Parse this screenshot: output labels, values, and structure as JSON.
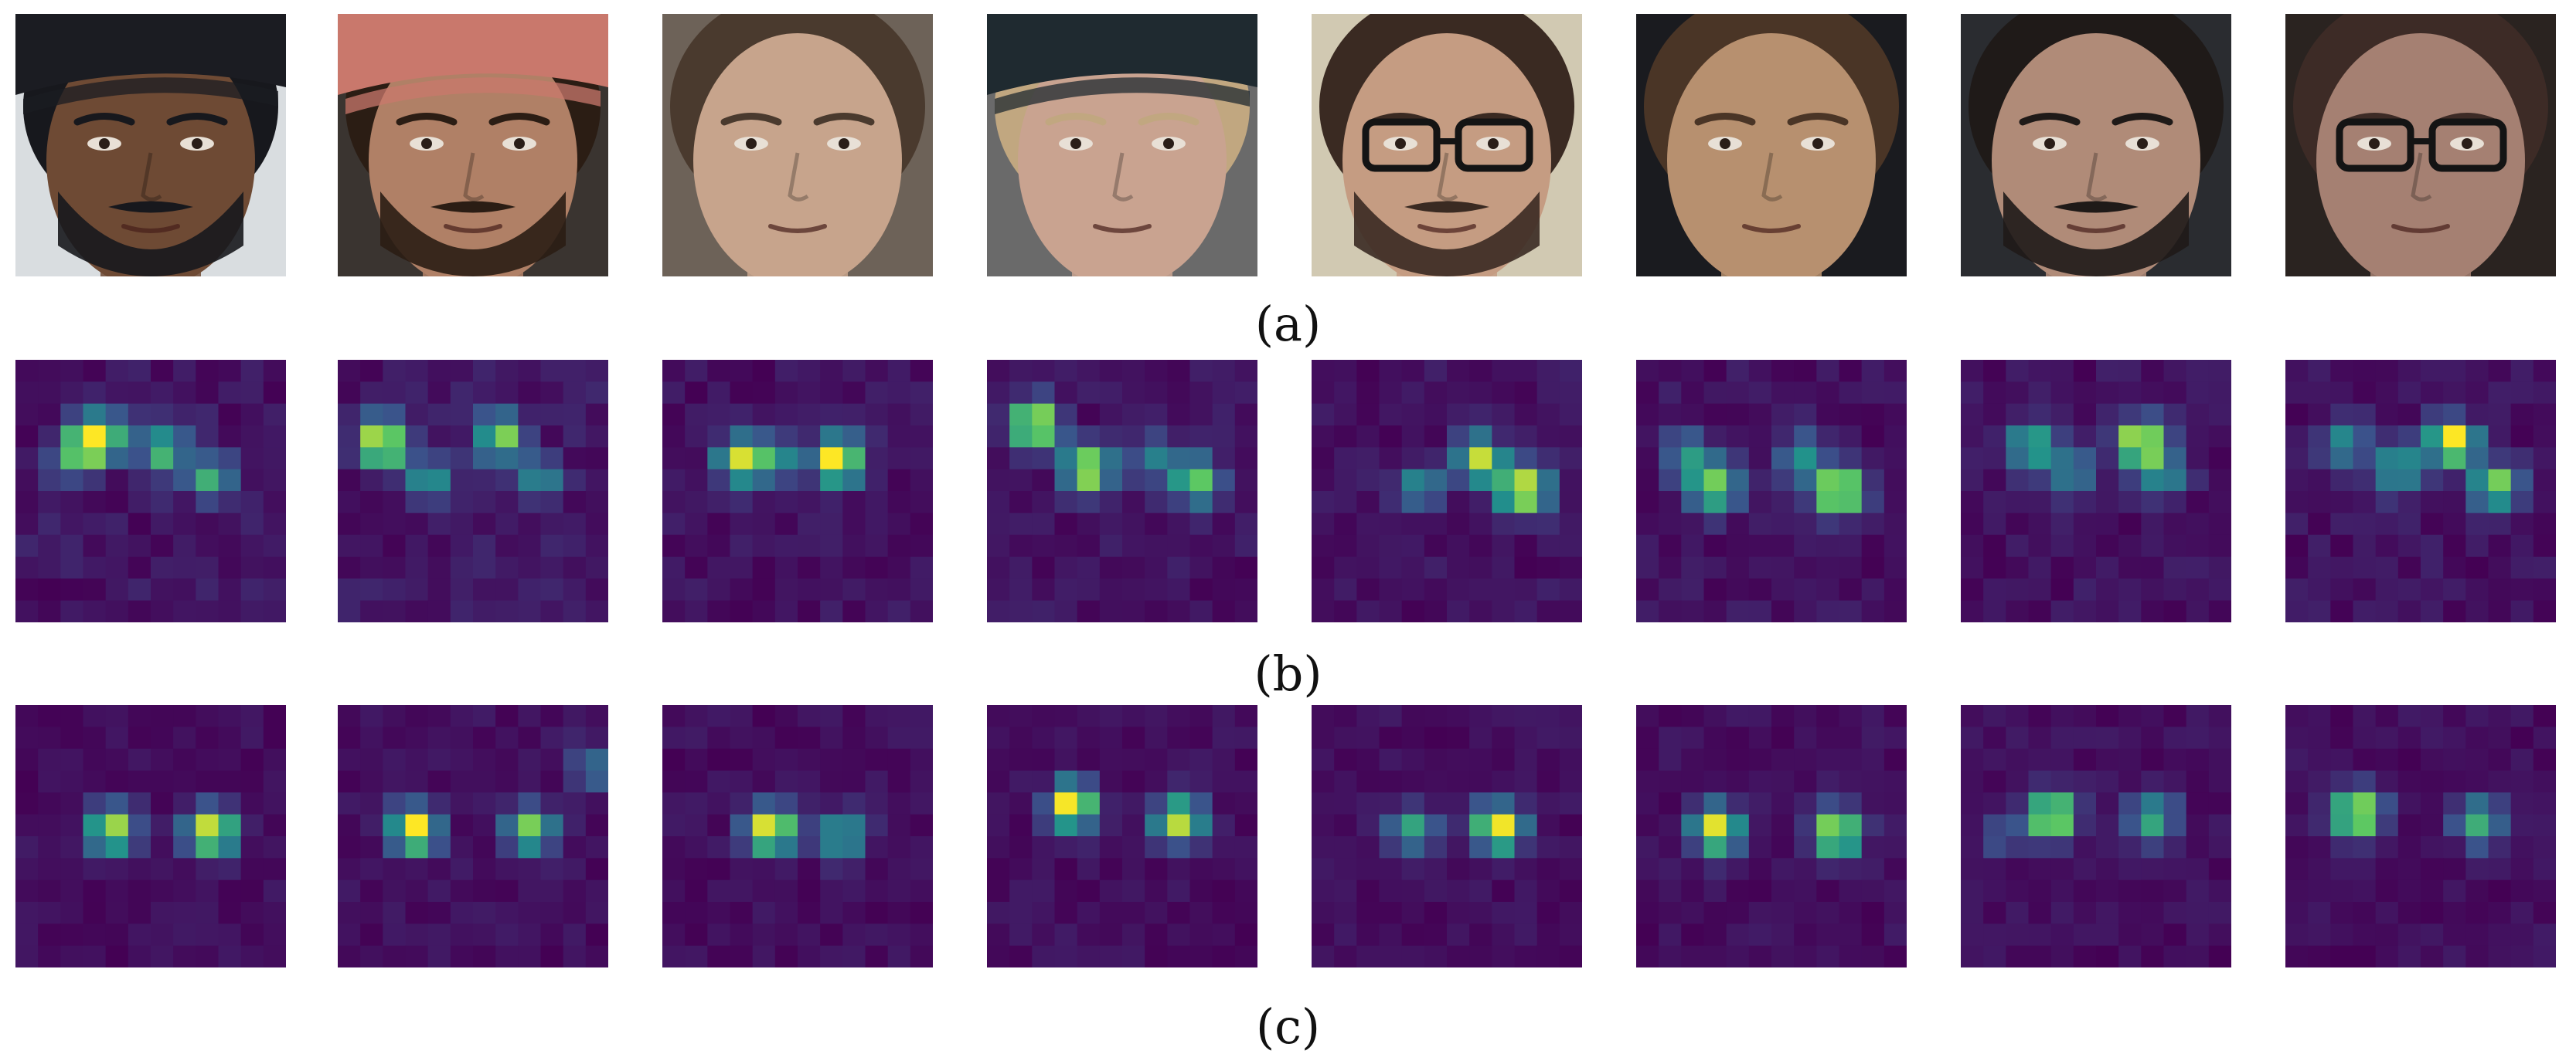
{
  "figure": {
    "panels": [
      {
        "label": "(a)",
        "kind": "face-photographs",
        "tiles": [
          {
            "skin": "#6e4a34",
            "hair": "#17181d",
            "hat": "#1b1c22",
            "beard": true,
            "glasses": false,
            "bg": "#d9dde0"
          },
          {
            "skin": "#b08066",
            "hair": "#2b1d14",
            "hat": "#c9786c",
            "beard": true,
            "glasses": false,
            "bg": "#3a3430"
          },
          {
            "skin": "#c7a48c",
            "hair": "#4a3a2e",
            "hat": null,
            "beard": false,
            "glasses": false,
            "bg": "#6d6258"
          },
          {
            "skin": "#c9a390",
            "hair": "#c1a780",
            "hat": "#1f2a30",
            "beard": false,
            "glasses": false,
            "bg": "#6a6a6a"
          },
          {
            "skin": "#c59c82",
            "hair": "#3a2a22",
            "hat": null,
            "beard": true,
            "glasses": true,
            "bg": "#d1c9b2"
          },
          {
            "skin": "#b7906f",
            "hair": "#4a3526",
            "hat": null,
            "beard": false,
            "glasses": false,
            "bg": "#1a1b1f"
          },
          {
            "skin": "#b08b78",
            "hair": "#1f1a18",
            "hat": null,
            "beard": true,
            "glasses": false,
            "bg": "#2a2c30"
          },
          {
            "skin": "#a58072",
            "hair": "#3d2b26",
            "hat": null,
            "beard": false,
            "glasses": true,
            "bg": "#2a2320"
          }
        ]
      },
      {
        "label": "(b)",
        "kind": "attention-heatmaps",
        "colormap": [
          "#440154",
          "#3b528b",
          "#21918c",
          "#5ec962",
          "#fde725"
        ],
        "grid": [
          12,
          12
        ],
        "tiles": [
          {
            "peaks": [
              [
                3.7,
                3.5,
                1.0
              ],
              [
                6.5,
                4.2,
                0.6
              ],
              [
                8.6,
                5.4,
                0.55
              ],
              [
                2.7,
                4.4,
                0.6
              ]
            ],
            "noise": 0.12
          },
          {
            "peaks": [
              [
                2.0,
                3.8,
                1.0
              ],
              [
                7.2,
                3.6,
                0.75
              ],
              [
                4.0,
                5.5,
                0.5
              ],
              [
                9.0,
                5.5,
                0.4
              ]
            ],
            "noise": 0.12
          },
          {
            "peaks": [
              [
                3.5,
                4.6,
                0.85
              ],
              [
                7.8,
                4.6,
                1.0
              ],
              [
                5.0,
                4.6,
                0.45
              ]
            ],
            "noise": 0.1
          },
          {
            "peaks": [
              [
                2.1,
                3.0,
                1.0
              ],
              [
                4.5,
                5.0,
                0.95
              ],
              [
                9.3,
                5.6,
                0.7
              ],
              [
                7.4,
                4.6,
                0.35
              ]
            ],
            "noise": 0.1
          },
          {
            "peaks": [
              [
                7.5,
                4.6,
                0.85
              ],
              [
                9.4,
                6.0,
                1.0
              ],
              [
                4.8,
                5.8,
                0.4
              ]
            ],
            "noise": 0.1
          },
          {
            "peaks": [
              [
                3.5,
                5.8,
                0.75
              ],
              [
                9.0,
                6.0,
                1.0
              ],
              [
                2.3,
                4.4,
                0.45
              ],
              [
                7.3,
                4.5,
                0.45
              ]
            ],
            "noise": 0.1
          },
          {
            "peaks": [
              [
                3.2,
                4.0,
                0.65
              ],
              [
                8.0,
                3.8,
                1.0
              ],
              [
                5.0,
                5.2,
                0.35
              ],
              [
                9.0,
                5.2,
                0.4
              ]
            ],
            "noise": 0.1
          },
          {
            "peaks": [
              [
                7.4,
                3.8,
                1.0
              ],
              [
                9.4,
                5.8,
                0.75
              ],
              [
                5.0,
                5.0,
                0.55
              ],
              [
                2.6,
                3.8,
                0.4
              ]
            ],
            "noise": 0.1
          }
        ]
      },
      {
        "label": "(c)",
        "kind": "attention-heatmaps",
        "colormap": [
          "#440154",
          "#3b528b",
          "#21918c",
          "#5ec962",
          "#fde725"
        ],
        "grid": [
          12,
          12
        ],
        "tiles": [
          {
            "peaks": [
              [
                4.3,
                5.7,
                0.85
              ],
              [
                8.7,
                5.8,
                1.0
              ]
            ],
            "noise": 0.08
          },
          {
            "peaks": [
              [
                3.4,
                5.7,
                1.0
              ],
              [
                8.5,
                5.7,
                0.8
              ],
              [
                11.4,
                2.8,
                0.35
              ]
            ],
            "noise": 0.08
          },
          {
            "peaks": [
              [
                4.8,
                5.7,
                1.0
              ],
              [
                8.0,
                6.0,
                0.6
              ]
            ],
            "noise": 0.08
          },
          {
            "peaks": [
              [
                3.8,
                4.6,
                1.0
              ],
              [
                8.5,
                5.3,
                0.9
              ]
            ],
            "noise": 0.08
          },
          {
            "peaks": [
              [
                4.5,
                5.7,
                0.55
              ],
              [
                8.3,
                5.6,
                1.0
              ]
            ],
            "noise": 0.08
          },
          {
            "peaks": [
              [
                3.6,
                5.7,
                1.0
              ],
              [
                8.9,
                5.8,
                0.95
              ]
            ],
            "noise": 0.08
          },
          {
            "peaks": [
              [
                4.0,
                5.1,
                1.0
              ],
              [
                8.5,
                5.2,
                0.6
              ],
              [
                1.6,
                6.0,
                0.2
              ]
            ],
            "noise": 0.08
          },
          {
            "peaks": [
              [
                3.2,
                5.0,
                1.0
              ],
              [
                8.6,
                5.4,
                0.6
              ]
            ],
            "noise": 0.08
          }
        ]
      }
    ]
  }
}
